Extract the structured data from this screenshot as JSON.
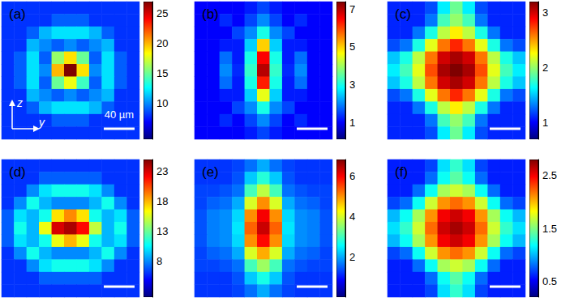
{
  "chart_data": [
    {
      "type": "heatmap",
      "title": "(a)",
      "tick_labels": false,
      "annotations": {
        "vertical_axis": "z",
        "horizontal_axis": "y",
        "scale_bar": "40 µm"
      },
      "clim": [
        4,
        27
      ],
      "cticks": [
        10,
        15,
        20,
        25
      ],
      "cells": [
        [
          8,
          8,
          8,
          8,
          8,
          8,
          8,
          8,
          8,
          8,
          8
        ],
        [
          8,
          8,
          8,
          8,
          9,
          9,
          9,
          8,
          8,
          8,
          8
        ],
        [
          8,
          8,
          9,
          11,
          12,
          12,
          12,
          11,
          9,
          8,
          8
        ],
        [
          8,
          8,
          11,
          10,
          9,
          10,
          9,
          10,
          11,
          8,
          8
        ],
        [
          8,
          9,
          12,
          9,
          16,
          19,
          15,
          9,
          12,
          9,
          8
        ],
        [
          8,
          9,
          12,
          10,
          20,
          27,
          19,
          10,
          12,
          9,
          8
        ],
        [
          8,
          9,
          12,
          9,
          15,
          18,
          14,
          9,
          12,
          9,
          8
        ],
        [
          8,
          8,
          11,
          10,
          9,
          10,
          9,
          10,
          11,
          8,
          8
        ],
        [
          8,
          8,
          9,
          11,
          12,
          12,
          12,
          11,
          9,
          8,
          8
        ],
        [
          8,
          8,
          8,
          8,
          9,
          9,
          9,
          8,
          8,
          8,
          8
        ],
        [
          8,
          8,
          8,
          8,
          8,
          8,
          8,
          8,
          8,
          8,
          8
        ]
      ]
    },
    {
      "type": "heatmap",
      "title": "(b)",
      "tick_labels": false,
      "clim": [
        0.1,
        7.4
      ],
      "cticks": [
        1,
        3,
        5,
        7
      ],
      "cells": [
        [
          1,
          1,
          1,
          1,
          1.2,
          1.5,
          1.2,
          1,
          1,
          1,
          1
        ],
        [
          1,
          1,
          1.3,
          1,
          1.5,
          2,
          1.5,
          1,
          1.3,
          1,
          1
        ],
        [
          1,
          1,
          1,
          1.5,
          2,
          3,
          2,
          1.5,
          1,
          1,
          1
        ],
        [
          1,
          1,
          1.2,
          1.2,
          2.5,
          5,
          2.5,
          1.2,
          1.2,
          1,
          1
        ],
        [
          1,
          1,
          1.8,
          1.2,
          3,
          6.5,
          3,
          1.2,
          1.8,
          1,
          1
        ],
        [
          1,
          1,
          2,
          1.3,
          3.2,
          7,
          3.2,
          1.3,
          2,
          1,
          1
        ],
        [
          1,
          1,
          1.8,
          1.2,
          3,
          6.3,
          3,
          1.2,
          1.8,
          1,
          1
        ],
        [
          1,
          1,
          1.2,
          1.2,
          2.5,
          4.5,
          2.5,
          1.2,
          1.2,
          1,
          1
        ],
        [
          1,
          1,
          1,
          1.5,
          2,
          3,
          2,
          1.5,
          1,
          1,
          1
        ],
        [
          1,
          1,
          1.3,
          1,
          1.5,
          2,
          1.5,
          1,
          1.3,
          1,
          1
        ],
        [
          1,
          1,
          1,
          1,
          1.2,
          1.5,
          1.2,
          1,
          1,
          1,
          1
        ]
      ]
    },
    {
      "type": "heatmap",
      "title": "(c)",
      "tick_labels": false,
      "clim": [
        0.7,
        3.2
      ],
      "cticks": [
        1,
        2,
        3
      ],
      "cells": [
        [
          1.1,
          1.1,
          1.1,
          1.2,
          1.6,
          1.9,
          1.6,
          1.2,
          1.1,
          1.1,
          1.1
        ],
        [
          1.1,
          1.1,
          1.1,
          1.3,
          1.8,
          2.0,
          1.8,
          1.3,
          1.1,
          1.1,
          1.1
        ],
        [
          1.1,
          1.1,
          1.3,
          1.7,
          2.1,
          2.3,
          2.1,
          1.7,
          1.3,
          1.1,
          1.1
        ],
        [
          1.2,
          1.3,
          1.7,
          2.2,
          2.6,
          2.8,
          2.6,
          2.2,
          1.7,
          1.3,
          1.2
        ],
        [
          1.5,
          1.7,
          2.1,
          2.6,
          3.0,
          3.1,
          3.0,
          2.6,
          2.1,
          1.7,
          1.5
        ],
        [
          1.6,
          1.8,
          2.2,
          2.7,
          3.1,
          3.2,
          3.1,
          2.7,
          2.2,
          1.8,
          1.6
        ],
        [
          1.5,
          1.7,
          2.1,
          2.6,
          3.0,
          3.1,
          3.0,
          2.6,
          2.1,
          1.7,
          1.5
        ],
        [
          1.2,
          1.3,
          1.7,
          2.2,
          2.6,
          2.8,
          2.6,
          2.2,
          1.7,
          1.3,
          1.2
        ],
        [
          1.1,
          1.1,
          1.3,
          1.7,
          2.1,
          2.3,
          2.1,
          1.7,
          1.3,
          1.1,
          1.1
        ],
        [
          1.1,
          1.1,
          1.1,
          1.3,
          1.8,
          2.0,
          1.8,
          1.3,
          1.1,
          1.1,
          1.1
        ],
        [
          1.1,
          1.1,
          1.1,
          1.2,
          1.6,
          1.9,
          1.6,
          1.2,
          1.1,
          1.1,
          1.1
        ]
      ]
    },
    {
      "type": "heatmap",
      "title": "(d)",
      "tick_labels": false,
      "clim": [
        2,
        25
      ],
      "cticks": [
        8,
        13,
        18,
        23
      ],
      "cells": [
        [
          6,
          6,
          6,
          6,
          6,
          6,
          6,
          6,
          6,
          6,
          6
        ],
        [
          6,
          6,
          6,
          7,
          7,
          7,
          7,
          7,
          6,
          6,
          6
        ],
        [
          6,
          6,
          8,
          10,
          11,
          11,
          11,
          10,
          8,
          6,
          6
        ],
        [
          6,
          8,
          11,
          9,
          8,
          8,
          8,
          9,
          11,
          8,
          6
        ],
        [
          7,
          10,
          9,
          11,
          17,
          19,
          17,
          11,
          9,
          10,
          7
        ],
        [
          7,
          11,
          9,
          16,
          23,
          24,
          22,
          15,
          9,
          11,
          7
        ],
        [
          7,
          10,
          9,
          11,
          16,
          18,
          16,
          11,
          9,
          10,
          7
        ],
        [
          6,
          8,
          11,
          9,
          8,
          8,
          8,
          9,
          11,
          8,
          6
        ],
        [
          6,
          6,
          8,
          10,
          11,
          11,
          11,
          10,
          8,
          6,
          6
        ],
        [
          6,
          6,
          6,
          7,
          7,
          7,
          7,
          7,
          6,
          6,
          6
        ],
        [
          6,
          6,
          6,
          6,
          6,
          6,
          6,
          6,
          6,
          6,
          6
        ]
      ]
    },
    {
      "type": "heatmap",
      "title": "(e)",
      "tick_labels": false,
      "clim": [
        0,
        6.8
      ],
      "cticks": [
        2,
        4,
        6
      ],
      "cells": [
        [
          1.2,
          1.2,
          1.2,
          1.3,
          1.6,
          2,
          1.6,
          1.3,
          1.2,
          1.2,
          1.2
        ],
        [
          1.2,
          1.2,
          1.2,
          1.4,
          2.2,
          2.8,
          2.2,
          1.4,
          1.2,
          1.2,
          1.2
        ],
        [
          1.3,
          1.3,
          1.4,
          1.6,
          3,
          3.8,
          3,
          1.6,
          1.4,
          1.3,
          1.3
        ],
        [
          1.3,
          1.5,
          1.6,
          2,
          4,
          5,
          4,
          2,
          1.6,
          1.5,
          1.3
        ],
        [
          1.4,
          1.7,
          1.8,
          2.3,
          5,
          6,
          5,
          2.3,
          1.8,
          1.7,
          1.4
        ],
        [
          1.4,
          1.7,
          1.8,
          2.4,
          5.3,
          6.3,
          5.3,
          2.4,
          1.8,
          1.7,
          1.4
        ],
        [
          1.4,
          1.7,
          1.8,
          2.3,
          5,
          5.9,
          5,
          2.3,
          1.8,
          1.7,
          1.4
        ],
        [
          1.3,
          1.5,
          1.6,
          2,
          4,
          4.8,
          4,
          2,
          1.6,
          1.5,
          1.3
        ],
        [
          1.3,
          1.3,
          1.4,
          1.6,
          3,
          3.6,
          3,
          1.6,
          1.4,
          1.3,
          1.3
        ],
        [
          1.2,
          1.2,
          1.2,
          1.4,
          2.2,
          2.7,
          2.2,
          1.4,
          1.2,
          1.2,
          1.2
        ],
        [
          1.2,
          1.2,
          1.2,
          1.3,
          1.6,
          2,
          1.6,
          1.3,
          1.2,
          1.2,
          1.2
        ]
      ]
    },
    {
      "type": "heatmap",
      "title": "(f)",
      "tick_labels": false,
      "clim": [
        0.2,
        2.8
      ],
      "cticks": [
        0.5,
        1.5,
        2.5
      ],
      "cells": [
        [
          0.6,
          0.6,
          0.6,
          0.7,
          1.1,
          1.3,
          1.1,
          0.7,
          0.6,
          0.6,
          0.6
        ],
        [
          0.6,
          0.6,
          0.6,
          0.8,
          1.2,
          1.4,
          1.2,
          0.8,
          0.6,
          0.6,
          0.6
        ],
        [
          0.6,
          0.6,
          0.8,
          1.2,
          1.6,
          1.7,
          1.6,
          1.2,
          0.8,
          0.6,
          0.6
        ],
        [
          0.7,
          0.8,
          1.2,
          1.7,
          2.1,
          2.2,
          2.1,
          1.7,
          1.2,
          0.8,
          0.7
        ],
        [
          1.0,
          1.2,
          1.6,
          2.1,
          2.5,
          2.6,
          2.5,
          2.1,
          1.6,
          1.2,
          1.0
        ],
        [
          1.1,
          1.3,
          1.7,
          2.2,
          2.6,
          2.7,
          2.6,
          2.2,
          1.7,
          1.3,
          1.1
        ],
        [
          1.0,
          1.2,
          1.6,
          2.1,
          2.5,
          2.6,
          2.5,
          2.1,
          1.6,
          1.2,
          1.0
        ],
        [
          0.7,
          0.8,
          1.2,
          1.7,
          2.1,
          2.2,
          2.1,
          1.7,
          1.2,
          0.8,
          0.7
        ],
        [
          0.6,
          0.6,
          0.8,
          1.2,
          1.6,
          1.7,
          1.6,
          1.2,
          0.8,
          0.6,
          0.6
        ],
        [
          0.6,
          0.6,
          0.6,
          0.8,
          1.2,
          1.4,
          1.2,
          0.8,
          0.6,
          0.6,
          0.6
        ],
        [
          0.6,
          0.6,
          0.6,
          0.7,
          1.1,
          1.3,
          1.1,
          0.7,
          0.6,
          0.6,
          0.6
        ]
      ]
    }
  ]
}
